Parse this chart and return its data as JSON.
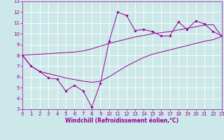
{
  "xlabel": "Windchill (Refroidissement éolien,°C)",
  "background_color": "#cce8e8",
  "line_color": "#990099",
  "grid_color": "#ffffff",
  "x_data": [
    0,
    1,
    2,
    3,
    4,
    5,
    6,
    7,
    8,
    9,
    10,
    11,
    12,
    13,
    14,
    15,
    16,
    17,
    18,
    19,
    20,
    21,
    22,
    23
  ],
  "y_scatter": [
    8.0,
    7.0,
    6.5,
    5.9,
    5.8,
    4.7,
    5.2,
    4.7,
    3.2,
    5.4,
    9.3,
    12.0,
    11.7,
    10.3,
    10.4,
    10.2,
    9.8,
    9.8,
    11.1,
    10.4,
    11.2,
    10.9,
    10.2,
    9.8
  ],
  "y_upper": [
    8.0,
    8.05,
    8.1,
    8.15,
    8.2,
    8.25,
    8.3,
    8.4,
    8.6,
    8.85,
    9.1,
    9.3,
    9.5,
    9.7,
    9.85,
    10.0,
    10.1,
    10.2,
    10.35,
    10.5,
    10.65,
    10.8,
    10.85,
    9.75
  ],
  "y_lower": [
    8.0,
    7.0,
    6.5,
    6.3,
    6.1,
    5.9,
    5.75,
    5.6,
    5.5,
    5.6,
    6.0,
    6.5,
    7.0,
    7.4,
    7.8,
    8.1,
    8.3,
    8.5,
    8.7,
    8.9,
    9.1,
    9.3,
    9.45,
    9.75
  ],
  "xlim": [
    0,
    23
  ],
  "ylim": [
    3,
    13
  ],
  "yticks": [
    3,
    4,
    5,
    6,
    7,
    8,
    9,
    10,
    11,
    12,
    13
  ],
  "xticks": [
    0,
    1,
    2,
    3,
    4,
    5,
    6,
    7,
    8,
    9,
    10,
    11,
    12,
    13,
    14,
    15,
    16,
    17,
    18,
    19,
    20,
    21,
    22,
    23
  ],
  "tick_fontsize": 5,
  "xlabel_fontsize": 5.5
}
